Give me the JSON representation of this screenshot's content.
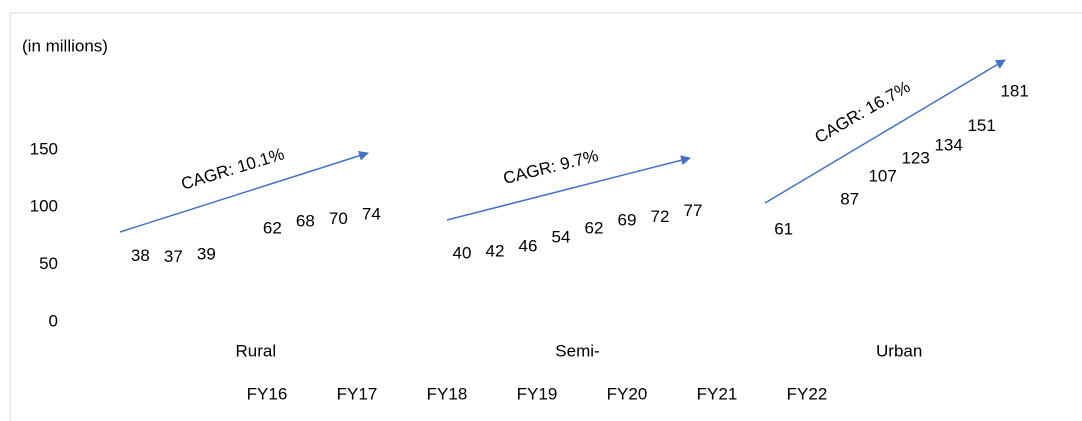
{
  "chart_data": {
    "type": "bar",
    "title": "(in millions)",
    "categories": [
      "Rural",
      "Semi-",
      "Urban"
    ],
    "series": [
      {
        "name": "FY16",
        "values": [
          38,
          40,
          61
        ]
      },
      {
        "name": "FY17",
        "values": [
          37,
          42,
          null
        ]
      },
      {
        "name": "FY18",
        "values": [
          39,
          46,
          87
        ]
      },
      {
        "name": "FY19",
        "values": [
          null,
          54,
          107
        ]
      },
      {
        "name": "FY20",
        "values": [
          62,
          62,
          123
        ]
      },
      {
        "name": "FY21",
        "values": [
          68,
          69,
          134
        ]
      },
      {
        "name": "FY22",
        "values": [
          70,
          72,
          151
        ]
      },
      {
        "name": null,
        "values": [
          74,
          77,
          181
        ]
      }
    ],
    "annotations": [
      "CAGR: 10.1%",
      "CAGR: 9.7%",
      "CAGR: 16.7%"
    ],
    "ylim": [
      0,
      250
    ],
    "yticks": [
      0,
      50,
      100,
      150
    ]
  }
}
